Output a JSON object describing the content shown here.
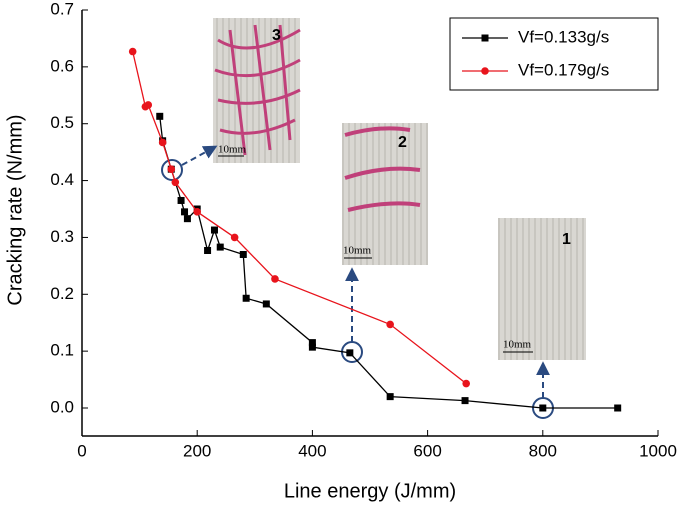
{
  "chart_data": {
    "type": "line",
    "xlabel": "Line energy (J/mm)",
    "ylabel": "Cracking rate (N/mm)",
    "xlim": [
      0,
      1000
    ],
    "xticks": [
      0,
      200,
      400,
      600,
      800,
      1000
    ],
    "ylim": [
      0,
      0.7
    ],
    "yticks": [
      {
        "value": 0,
        "label": "0.0"
      },
      0.1,
      0.2,
      0.3,
      0.4,
      0.5,
      0.6,
      0.7
    ],
    "legend": "upper right",
    "series": [
      {
        "name": "Vf=0.133g/s",
        "color": "#000000",
        "marker": "square",
        "x": [
          135,
          140,
          155,
          172,
          178,
          183,
          200,
          218,
          230,
          240,
          280,
          285,
          320,
          400,
          400,
          465,
          535,
          665,
          800,
          930
        ],
        "values": [
          0.513,
          0.47,
          0.42,
          0.365,
          0.345,
          0.333,
          0.35,
          0.277,
          0.313,
          0.283,
          0.27,
          0.193,
          0.183,
          0.115,
          0.107,
          0.097,
          0.02,
          0.013,
          0.0,
          0.0
        ]
      },
      {
        "name": "Vf=0.179g/s",
        "color": "#e8141c",
        "marker": "circle",
        "x": [
          88,
          110,
          115,
          140,
          155,
          162,
          200,
          265,
          335,
          535,
          667
        ],
        "values": [
          0.627,
          0.53,
          0.533,
          0.467,
          0.42,
          0.397,
          0.345,
          0.3,
          0.227,
          0.147,
          0.043
        ]
      }
    ],
    "insets": [
      {
        "label": "3",
        "scale": "10mm"
      },
      {
        "label": "2",
        "scale": "10mm"
      },
      {
        "label": "1",
        "scale": "10mm"
      }
    ]
  }
}
